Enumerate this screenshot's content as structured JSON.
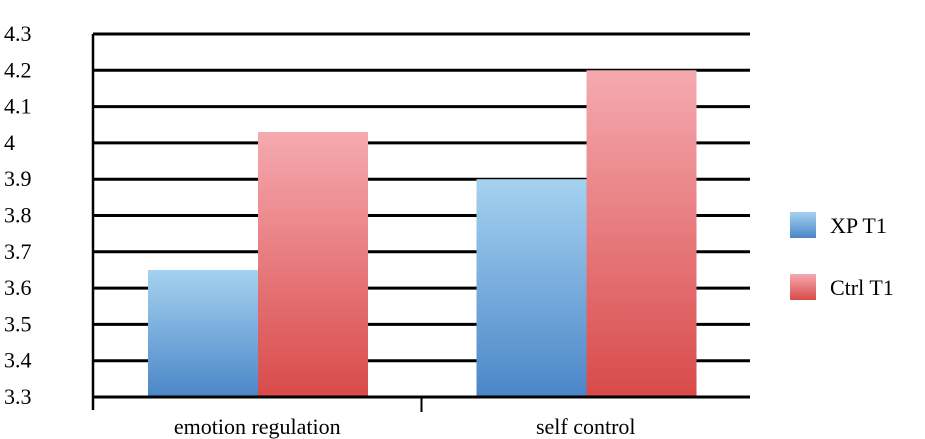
{
  "chart_data": {
    "type": "bar",
    "title": "",
    "xlabel": "",
    "ylabel": "",
    "categories": [
      "emotion regulation",
      "self control"
    ],
    "series": [
      {
        "name": "XP T1",
        "values": [
          3.65,
          3.9
        ],
        "color_top": "#a6d2f0",
        "color_bottom": "#4a86c8"
      },
      {
        "name": "Ctrl T1",
        "values": [
          4.03,
          4.2
        ],
        "color_top": "#f5aab0",
        "color_bottom": "#d94a4a"
      }
    ],
    "ylim": [
      3.3,
      4.3
    ],
    "yticks": [
      "3.3",
      "3.4",
      "3.5",
      "3.6",
      "3.7",
      "3.8",
      "3.9",
      "4",
      "4.1",
      "4.2",
      "4.3"
    ],
    "grid": true,
    "legend_position": "right"
  }
}
